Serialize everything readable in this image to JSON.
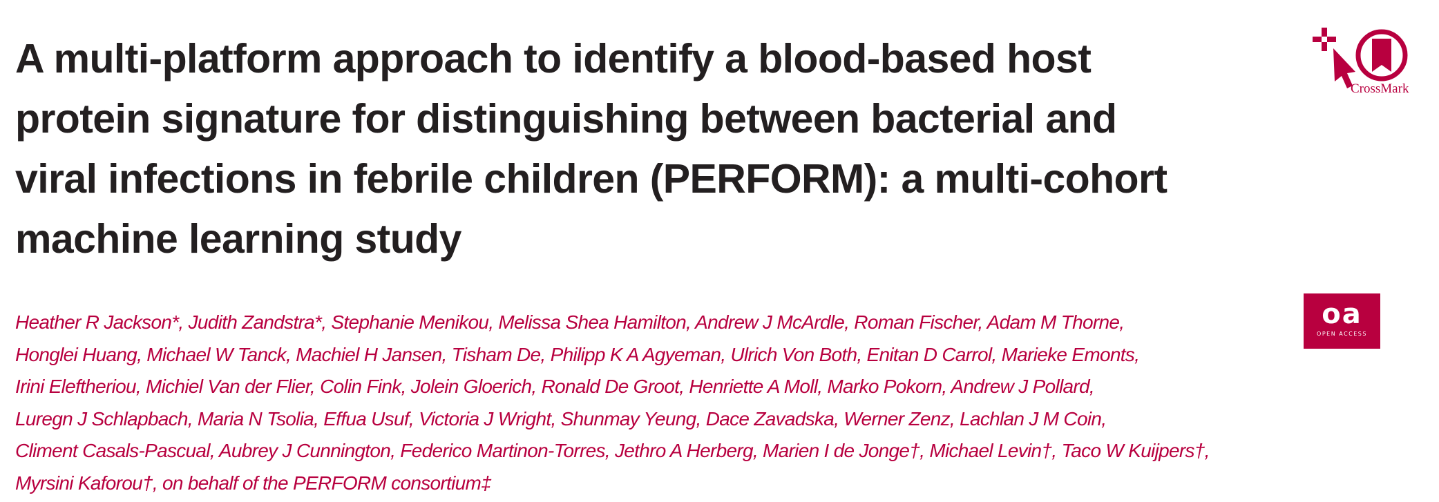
{
  "title_lines": [
    "A multi-platform approach to identify a blood-based host",
    "protein signature for distinguishing between bacterial and",
    "viral infections in febrile children (PERFORM): a multi-cohort",
    "machine learning study"
  ],
  "author_lines": [
    "Heather R Jackson*, Judith Zandstra*, Stephanie Menikou, Melissa Shea Hamilton, Andrew J McArdle, Roman Fischer, Adam M Thorne,",
    "Honglei Huang, Michael W Tanck, Machiel H Jansen, Tisham De, Philipp K A Agyeman, Ulrich Von Both, Enitan D Carrol, Marieke Emonts,",
    "Irini Eleftheriou, Michiel Van der Flier, Colin Fink, Jolein Gloerich, Ronald De Groot, Henriette A Moll, Marko Pokorn, Andrew J Pollard,",
    "Luregn J Schlapbach, Maria N Tsolia, Effua Usuf, Victoria J Wright, Shunmay Yeung, Dace Zavadska, Werner Zenz, Lachlan J M Coin,",
    "Climent Casals-Pascual, Aubrey J Cunnington, Federico Martinon-Torres, Jethro A Herberg, Marien I de Jonge†, Michael Levin†, Taco W Kuijpers†,",
    "Myrsini Kaforou†, on behalf of the PERFORM consortium‡"
  ],
  "badges": {
    "crossmark_label": "CrossMark",
    "oa_label": "oa",
    "oa_sub": "OPEN ACCESS"
  },
  "colors": {
    "title": "#231f20",
    "accent": "#b8003f"
  }
}
